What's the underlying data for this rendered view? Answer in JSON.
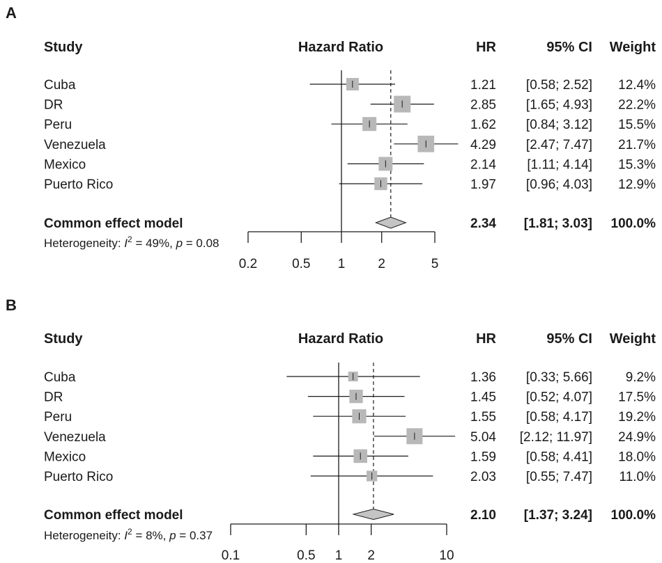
{
  "chart_data": [
    {
      "type": "forest",
      "panel": "A",
      "columns": {
        "study": "Study",
        "plot": "Hazard Ratio",
        "hr": "HR",
        "ci": "95% CI",
        "weight": "Weight"
      },
      "scale": "log",
      "xlim": [
        0.2,
        5
      ],
      "ticks": [
        0.2,
        0.5,
        1,
        2,
        5
      ],
      "tick_labels": [
        "0.2",
        "0.5",
        "1",
        "2",
        "5"
      ],
      "null_line": 1,
      "studies": [
        {
          "name": "Cuba",
          "hr": 1.21,
          "lo": 0.58,
          "hi": 2.52,
          "weight": 12.4,
          "hr_text": "1.21",
          "ci_text": "[0.58; 2.52]",
          "weight_text": "12.4%"
        },
        {
          "name": "DR",
          "hr": 2.85,
          "lo": 1.65,
          "hi": 4.93,
          "weight": 22.2,
          "hr_text": "2.85",
          "ci_text": "[1.65; 4.93]",
          "weight_text": "22.2%"
        },
        {
          "name": "Peru",
          "hr": 1.62,
          "lo": 0.84,
          "hi": 3.12,
          "weight": 15.5,
          "hr_text": "1.62",
          "ci_text": "[0.84; 3.12]",
          "weight_text": "15.5%"
        },
        {
          "name": "Venezuela",
          "hr": 4.29,
          "lo": 2.47,
          "hi": 7.47,
          "weight": 21.7,
          "hr_text": "4.29",
          "ci_text": "[2.47; 7.47]",
          "weight_text": "21.7%"
        },
        {
          "name": "Mexico",
          "hr": 2.14,
          "lo": 1.11,
          "hi": 4.14,
          "weight": 15.3,
          "hr_text": "2.14",
          "ci_text": "[1.11; 4.14]",
          "weight_text": "15.3%"
        },
        {
          "name": "Puerto Rico",
          "hr": 1.97,
          "lo": 0.96,
          "hi": 4.03,
          "weight": 12.9,
          "hr_text": "1.97",
          "ci_text": "[0.96; 4.03]",
          "weight_text": "12.9%"
        }
      ],
      "summary": {
        "name": "Common effect model",
        "hr": 2.34,
        "lo": 1.81,
        "hi": 3.03,
        "hr_text": "2.34",
        "ci_text": "[1.81; 3.03]",
        "weight_text": "100.0%"
      },
      "heterogeneity": {
        "prefix": "Heterogeneity: ",
        "i_symbol": "I",
        "i_exp": "2",
        "i_val": " = 49%, ",
        "p_symbol": "p",
        "p_val": " = 0.08"
      }
    },
    {
      "type": "forest",
      "panel": "B",
      "columns": {
        "study": "Study",
        "plot": "Hazard Ratio",
        "hr": "HR",
        "ci": "95% CI",
        "weight": "Weight"
      },
      "scale": "log",
      "xlim": [
        0.1,
        10
      ],
      "ticks": [
        0.1,
        0.5,
        1,
        2,
        10
      ],
      "tick_labels": [
        "0.1",
        "0.5",
        "1",
        "2",
        "10"
      ],
      "null_line": 1,
      "studies": [
        {
          "name": "Cuba",
          "hr": 1.36,
          "lo": 0.33,
          "hi": 5.66,
          "weight": 9.2,
          "hr_text": "1.36",
          "ci_text": "[0.33;  5.66]",
          "weight_text": "9.2%"
        },
        {
          "name": "DR",
          "hr": 1.45,
          "lo": 0.52,
          "hi": 4.07,
          "weight": 17.5,
          "hr_text": "1.45",
          "ci_text": "[0.52;  4.07]",
          "weight_text": "17.5%"
        },
        {
          "name": "Peru",
          "hr": 1.55,
          "lo": 0.58,
          "hi": 4.17,
          "weight": 19.2,
          "hr_text": "1.55",
          "ci_text": "[0.58;  4.17]",
          "weight_text": "19.2%"
        },
        {
          "name": "Venezuela",
          "hr": 5.04,
          "lo": 2.12,
          "hi": 11.97,
          "weight": 24.9,
          "hr_text": "5.04",
          "ci_text": "[2.12; 11.97]",
          "weight_text": "24.9%"
        },
        {
          "name": "Mexico",
          "hr": 1.59,
          "lo": 0.58,
          "hi": 4.41,
          "weight": 18.0,
          "hr_text": "1.59",
          "ci_text": "[0.58;  4.41]",
          "weight_text": "18.0%"
        },
        {
          "name": "Puerto Rico",
          "hr": 2.03,
          "lo": 0.55,
          "hi": 7.47,
          "weight": 11.0,
          "hr_text": "2.03",
          "ci_text": "[0.55;  7.47]",
          "weight_text": "11.0%"
        }
      ],
      "summary": {
        "name": "Common effect model",
        "hr": 2.1,
        "lo": 1.37,
        "hi": 3.24,
        "hr_text": "2.10",
        "ci_text": "[1.37;  3.24]",
        "weight_text": "100.0%"
      },
      "heterogeneity": {
        "prefix": "Heterogeneity: ",
        "i_symbol": "I",
        "i_exp": "2",
        "i_val": " = 8%, ",
        "p_symbol": "p",
        "p_val": " = 0.37"
      }
    }
  ],
  "colors": {
    "square": "#b8b8b8",
    "diamond": "#c4c4c4",
    "line": "#1a1a1a"
  }
}
